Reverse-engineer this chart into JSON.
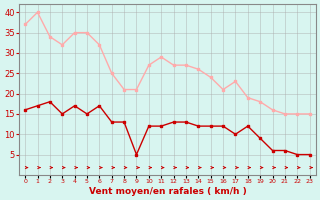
{
  "hours": [
    0,
    1,
    2,
    3,
    4,
    5,
    6,
    7,
    8,
    9,
    10,
    11,
    12,
    13,
    14,
    15,
    16,
    17,
    18,
    19,
    20,
    21,
    22,
    23
  ],
  "wind_avg": [
    16,
    17,
    18,
    15,
    17,
    15,
    17,
    13,
    13,
    5,
    12,
    12,
    13,
    13,
    12,
    12,
    12,
    10,
    12,
    9,
    6,
    6,
    5,
    5
  ],
  "wind_gust": [
    37,
    40,
    34,
    32,
    35,
    35,
    32,
    25,
    21,
    21,
    27,
    29,
    27,
    27,
    26,
    24,
    21,
    23,
    19,
    18,
    16,
    15,
    15,
    15
  ],
  "bg_color": "#d8f5f0",
  "grid_color": "#aaaaaa",
  "avg_color": "#cc0000",
  "gust_color": "#ffaaaa",
  "arrow_color": "#cc0000",
  "xlabel": "Vent moyen/en rafales ( km/h )",
  "xlabel_color": "#cc0000",
  "tick_color": "#cc0000",
  "ylim": [
    0,
    42
  ],
  "yticks": [
    5,
    10,
    15,
    20,
    25,
    30,
    35,
    40
  ],
  "xlim": [
    -0.5,
    23.5
  ]
}
